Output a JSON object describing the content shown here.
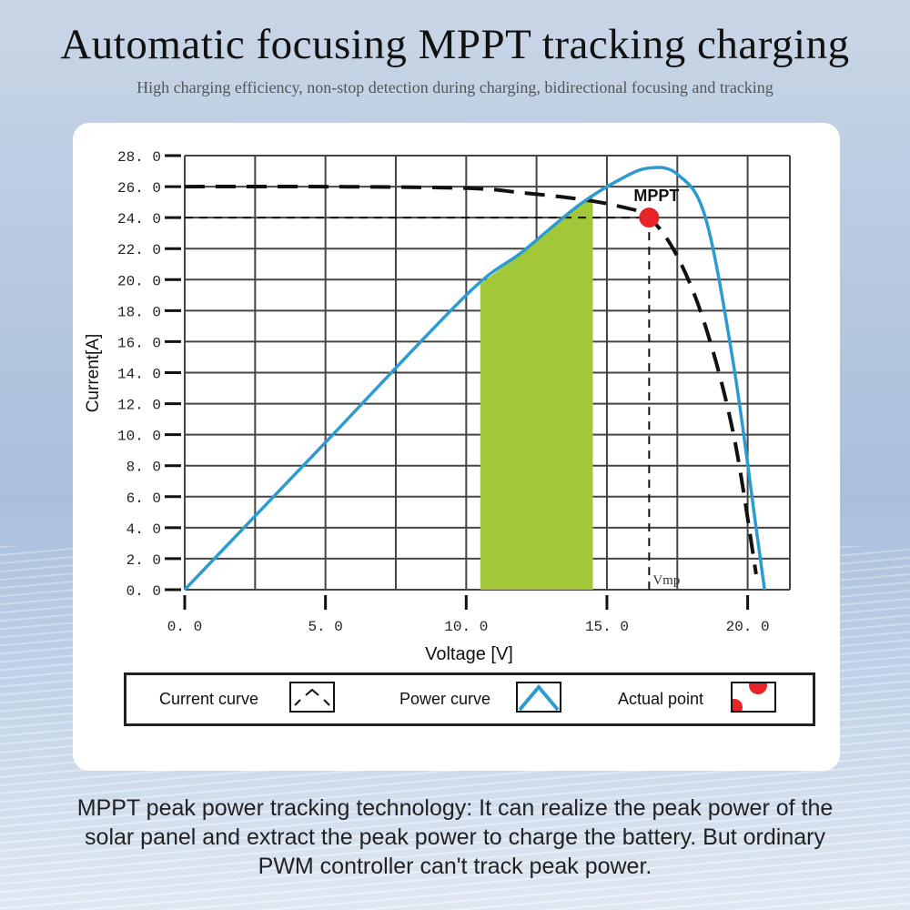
{
  "header": {
    "title": "Automatic focusing MPPT tracking charging",
    "subtitle": "High charging efficiency, non-stop detection during charging, bidirectional focusing and tracking"
  },
  "chart_data": {
    "type": "line",
    "xlabel": "Voltage [V]",
    "ylabel": "Current[A]",
    "xlim": [
      0,
      20.0
    ],
    "ylim": [
      0,
      28.0
    ],
    "x_ticks": [
      {
        "value": 0,
        "label": "0. 0"
      },
      {
        "value": 5,
        "label": "5. 0"
      },
      {
        "value": 10,
        "label": "10. 0"
      },
      {
        "value": 15,
        "label": "15. 0"
      },
      {
        "value": 20,
        "label": "20. 0"
      }
    ],
    "y_ticks": [
      {
        "value": 0,
        "label": "0. 0"
      },
      {
        "value": 2,
        "label": "2. 0"
      },
      {
        "value": 4,
        "label": "4. 0"
      },
      {
        "value": 6,
        "label": "6. 0"
      },
      {
        "value": 8,
        "label": "8. 0"
      },
      {
        "value": 10,
        "label": "10. 0"
      },
      {
        "value": 12,
        "label": "12. 0"
      },
      {
        "value": 14,
        "label": "14. 0"
      },
      {
        "value": 16,
        "label": "16. 0"
      },
      {
        "value": 18,
        "label": "18. 0"
      },
      {
        "value": 20,
        "label": "20. 0"
      },
      {
        "value": 22,
        "label": "22. 0"
      },
      {
        "value": 24,
        "label": "24. 0"
      },
      {
        "value": 26,
        "label": "26. 0"
      },
      {
        "value": 28,
        "label": "28. 0"
      }
    ],
    "grid": true,
    "series": [
      {
        "name": "Current curve",
        "style": "dashed",
        "color": "#111111",
        "x": [
          0,
          5,
          10,
          12,
          14,
          15.5,
          16.5,
          17.5,
          18.5,
          19.5,
          20.3
        ],
        "y": [
          26.0,
          26.0,
          25.9,
          25.6,
          25.2,
          24.7,
          24.0,
          21.5,
          17.0,
          10.0,
          1.0
        ]
      },
      {
        "name": "Power curve",
        "style": "solid",
        "color": "#2b9bd0",
        "x": [
          0,
          5,
          10,
          12,
          14,
          15.5,
          16.5,
          17.5,
          18.5,
          19.5,
          20.3,
          20.6
        ],
        "y": [
          0,
          9.5,
          19.0,
          21.8,
          24.8,
          26.5,
          27.2,
          26.8,
          24.0,
          14.5,
          4.0,
          0
        ]
      }
    ],
    "shaded_region": {
      "x_start": 10.5,
      "x_end": 14.5,
      "color": "#a2c83a"
    },
    "mppt_point": {
      "x": 16.5,
      "y": 24.0,
      "label": "MPPT",
      "color": "#e8232a"
    },
    "reference_lines": {
      "y": 26.0,
      "y2": 24.0,
      "x": 16.5
    },
    "vmp_label": "Vmp"
  },
  "legend": {
    "items": [
      {
        "label": "Current curve",
        "icon": "current-curve-icon"
      },
      {
        "label": "Power curve",
        "icon": "power-curve-icon"
      },
      {
        "label": "Actual point",
        "icon": "actual-point-icon"
      }
    ]
  },
  "footer": {
    "line1": "MPPT peak power tracking technology: It can realize the peak power of the",
    "line2": "solar panel and extract the peak power to charge the battery. But ordinary",
    "line3": "PWM controller can't track peak power."
  }
}
